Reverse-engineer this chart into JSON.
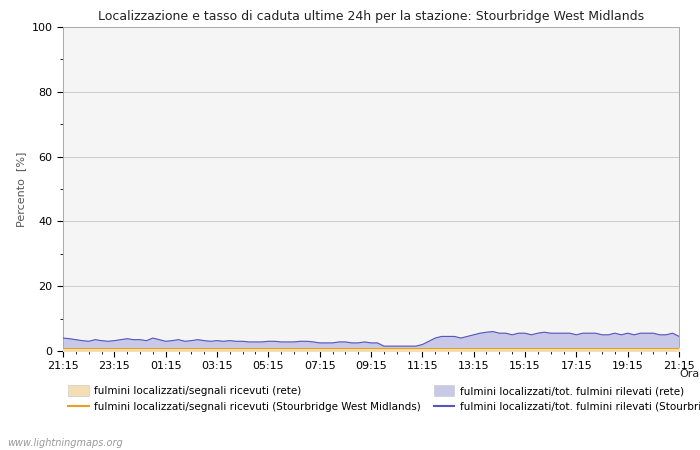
{
  "title": "Localizzazione e tasso di caduta ultime 24h per la stazione: Stourbridge West Midlands",
  "ylabel": "Percento  [%]",
  "xlabel_right": "Orario",
  "watermark": "www.lightningmaps.org",
  "x_ticks": [
    "21:15",
    "23:15",
    "01:15",
    "03:15",
    "05:15",
    "07:15",
    "09:15",
    "11:15",
    "13:15",
    "15:15",
    "17:15",
    "19:15",
    "21:15"
  ],
  "ylim": [
    0,
    100
  ],
  "yticks": [
    0,
    20,
    40,
    60,
    80,
    100
  ],
  "yticks_minor": [
    10,
    30,
    50,
    70,
    90
  ],
  "bg_color": "#ffffff",
  "plot_bg_color": "#f5f5f5",
  "grid_color": "#cccccc",
  "fill_rete_color": "#f5deb3",
  "fill_station_color": "#c8c8e8",
  "line_rete_color": "#e8a020",
  "line_station_color": "#5555bb",
  "legend": {
    "label1": "fulmini localizzati/segnali ricevuti (rete)",
    "label2": "fulmini localizzati/segnali ricevuti (Stourbridge West Midlands)",
    "label3": "fulmini localizzati/tot. fulmini rilevati (rete)",
    "label4": "fulmini localizzati/tot. fulmini rilevati (Stourbridge West Midlands)"
  },
  "n_points": 97,
  "rete_fill_values": [
    1.0,
    1.0,
    1.0,
    1.0,
    1.0,
    1.0,
    1.0,
    1.0,
    1.0,
    1.0,
    1.0,
    1.0,
    1.0,
    1.0,
    1.0,
    1.0,
    1.0,
    1.0,
    1.0,
    1.0,
    1.0,
    1.0,
    1.0,
    1.0,
    1.0,
    1.0,
    1.0,
    1.0,
    1.0,
    1.0,
    1.0,
    1.0,
    1.0,
    1.0,
    1.0,
    1.0,
    1.0,
    1.0,
    1.0,
    1.0,
    1.0,
    1.0,
    1.0,
    1.0,
    1.0,
    1.0,
    1.0,
    1.0,
    1.0,
    1.0,
    1.0,
    1.0,
    1.0,
    1.0,
    1.0,
    1.0,
    1.0,
    1.0,
    1.0,
    1.0,
    1.0,
    1.0,
    1.0,
    1.0,
    1.0,
    1.0,
    1.0,
    1.0,
    1.0,
    1.0,
    1.0,
    1.0,
    1.0,
    1.0,
    1.0,
    1.0,
    1.0,
    1.0,
    1.0,
    1.0,
    1.0,
    1.0,
    1.0,
    1.0,
    1.0,
    1.0,
    1.0,
    1.0,
    1.0,
    1.0,
    1.0,
    1.0,
    1.0,
    1.0,
    1.0,
    1.0,
    1.0
  ],
  "station_fill_values": [
    4.0,
    3.8,
    3.5,
    3.2,
    3.0,
    3.5,
    3.2,
    3.0,
    3.2,
    3.5,
    3.8,
    3.5,
    3.5,
    3.2,
    4.0,
    3.5,
    3.0,
    3.2,
    3.5,
    3.0,
    3.2,
    3.5,
    3.2,
    3.0,
    3.2,
    3.0,
    3.2,
    3.0,
    3.0,
    2.8,
    2.8,
    2.8,
    3.0,
    3.0,
    2.8,
    2.8,
    2.8,
    3.0,
    3.0,
    2.8,
    2.5,
    2.5,
    2.5,
    2.8,
    2.8,
    2.5,
    2.5,
    2.8,
    2.5,
    2.5,
    1.5,
    1.5,
    1.5,
    1.5,
    1.5,
    1.5,
    2.0,
    3.0,
    4.0,
    4.5,
    4.5,
    4.5,
    4.0,
    4.5,
    5.0,
    5.5,
    5.8,
    6.0,
    5.5,
    5.5,
    5.0,
    5.5,
    5.5,
    5.0,
    5.5,
    5.8,
    5.5,
    5.5,
    5.5,
    5.5,
    5.0,
    5.5,
    5.5,
    5.5,
    5.0,
    5.0,
    5.5,
    5.0,
    5.5,
    5.0,
    5.5,
    5.5,
    5.5,
    5.0,
    5.0,
    5.5,
    4.5
  ],
  "rete_line_values": [
    1.0,
    1.0,
    1.0,
    1.0,
    1.0,
    1.0,
    1.0,
    1.0,
    1.0,
    1.0,
    1.0,
    1.0,
    1.0,
    1.0,
    1.0,
    1.0,
    1.0,
    1.0,
    1.0,
    1.0,
    1.0,
    1.0,
    1.0,
    1.0,
    1.0,
    1.0,
    1.0,
    1.0,
    1.0,
    1.0,
    1.0,
    1.0,
    1.0,
    1.0,
    1.0,
    1.0,
    1.0,
    1.0,
    1.0,
    1.0,
    1.0,
    1.0,
    1.0,
    1.0,
    1.0,
    1.0,
    1.0,
    1.0,
    1.0,
    1.0,
    1.0,
    1.0,
    1.0,
    1.0,
    1.0,
    1.0,
    1.0,
    1.0,
    1.0,
    1.0,
    1.0,
    1.0,
    1.0,
    1.0,
    1.0,
    1.0,
    1.0,
    1.0,
    1.0,
    1.0,
    1.0,
    1.0,
    1.0,
    1.0,
    1.0,
    1.0,
    1.0,
    1.0,
    1.0,
    1.0,
    1.0,
    1.0,
    1.0,
    1.0,
    1.0,
    1.0,
    1.0,
    1.0,
    1.0,
    1.0,
    1.0,
    1.0,
    1.0,
    1.0,
    1.0,
    1.0,
    1.0
  ],
  "station_line_values": [
    4.0,
    3.8,
    3.5,
    3.2,
    3.0,
    3.5,
    3.2,
    3.0,
    3.2,
    3.5,
    3.8,
    3.5,
    3.5,
    3.2,
    4.0,
    3.5,
    3.0,
    3.2,
    3.5,
    3.0,
    3.2,
    3.5,
    3.2,
    3.0,
    3.2,
    3.0,
    3.2,
    3.0,
    3.0,
    2.8,
    2.8,
    2.8,
    3.0,
    3.0,
    2.8,
    2.8,
    2.8,
    3.0,
    3.0,
    2.8,
    2.5,
    2.5,
    2.5,
    2.8,
    2.8,
    2.5,
    2.5,
    2.8,
    2.5,
    2.5,
    1.5,
    1.5,
    1.5,
    1.5,
    1.5,
    1.5,
    2.0,
    3.0,
    4.0,
    4.5,
    4.5,
    4.5,
    4.0,
    4.5,
    5.0,
    5.5,
    5.8,
    6.0,
    5.5,
    5.5,
    5.0,
    5.5,
    5.5,
    5.0,
    5.5,
    5.8,
    5.5,
    5.5,
    5.5,
    5.5,
    5.0,
    5.5,
    5.5,
    5.5,
    5.0,
    5.0,
    5.5,
    5.0,
    5.5,
    5.0,
    5.5,
    5.5,
    5.5,
    5.0,
    5.0,
    5.5,
    4.5
  ]
}
